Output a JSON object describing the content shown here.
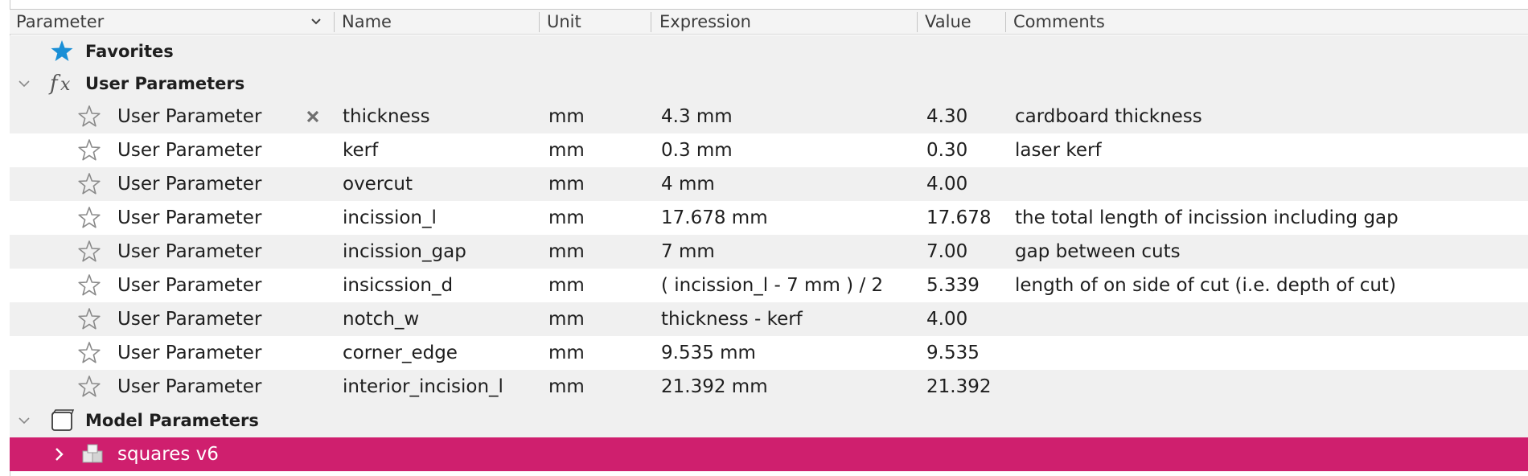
{
  "columns": {
    "parameter": "Parameter",
    "name": "Name",
    "unit": "Unit",
    "expression": "Expression",
    "value": "Value",
    "comments": "Comments"
  },
  "groups": {
    "favorites": "Favorites",
    "user_parameters": "User Parameters",
    "model_parameters": "Model Parameters"
  },
  "user_parameters": [
    {
      "type": "User Parameter",
      "name": "thickness",
      "unit": "mm",
      "expression": "4.3 mm",
      "value": "4.30",
      "comment": "cardboard thickness"
    },
    {
      "type": "User Parameter",
      "name": "kerf",
      "unit": "mm",
      "expression": "0.3 mm",
      "value": "0.30",
      "comment": "laser kerf"
    },
    {
      "type": "User Parameter",
      "name": "overcut",
      "unit": "mm",
      "expression": "4 mm",
      "value": "4.00",
      "comment": ""
    },
    {
      "type": "User Parameter",
      "name": "incission_l",
      "unit": "mm",
      "expression": "17.678 mm",
      "value": "17.678",
      "comment": "the total length of incission including gap"
    },
    {
      "type": "User Parameter",
      "name": "incission_gap",
      "unit": "mm",
      "expression": "7 mm",
      "value": "7.00",
      "comment": "gap between cuts"
    },
    {
      "type": "User Parameter",
      "name": "insicssion_d",
      "unit": "mm",
      "expression": "( incission_l - 7 mm ) / 2",
      "value": "5.339",
      "comment": "length of on side of cut (i.e. depth of cut)"
    },
    {
      "type": "User Parameter",
      "name": "notch_w",
      "unit": "mm",
      "expression": "thickness - kerf",
      "value": "4.00",
      "comment": ""
    },
    {
      "type": "User Parameter",
      "name": "corner_edge",
      "unit": "mm",
      "expression": "9.535 mm",
      "value": "9.535",
      "comment": ""
    },
    {
      "type": "User Parameter",
      "name": "interior_incision_l",
      "unit": "mm",
      "expression": "21.392 mm",
      "value": "21.392",
      "comment": ""
    }
  ],
  "model_components": [
    {
      "name": "squares v6"
    }
  ],
  "colors": {
    "selection": "#cf1f6e",
    "favorite_star": "#1a8fd6",
    "row_stripe": "#f0f0f0"
  },
  "icons": {
    "sort": "chevron-down-icon",
    "favorites": "star-filled-icon",
    "user_parameters": "fx-icon",
    "model_parameters": "component-box-icon",
    "param_favorite": "star-outline-icon",
    "delete": "delete-x-icon",
    "expand": "chevron-right-icon",
    "collapse": "chevron-down-icon",
    "component": "component-icon"
  }
}
